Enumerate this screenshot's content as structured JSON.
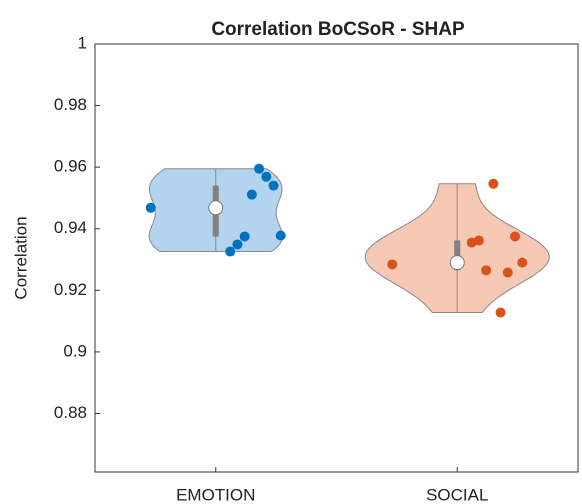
{
  "chart_data": {
    "type": "violin",
    "title": "Correlation BoCSoR - SHAP",
    "y_label": "Correlation",
    "categories": [
      "EMOTION",
      "SOCIAL"
    ],
    "series": [
      {
        "name": "EMOTION",
        "color": "#0072bd",
        "fill": "#b3d3ee",
        "values": [
          0.9468,
          0.9378,
          0.954,
          0.9569,
          0.9595,
          0.9511,
          0.9375,
          0.9349,
          0.9326
        ]
      },
      {
        "name": "SOCIAL",
        "color": "#d95319",
        "fill": "#f7c9b5",
        "values": [
          0.9284,
          0.929,
          0.9375,
          0.9258,
          0.9128,
          0.9546,
          0.9265,
          0.9362,
          0.9355
        ]
      }
    ],
    "ylim": [
      0.861,
      1
    ],
    "yticks": [
      0.88,
      0.9,
      0.92,
      0.94,
      0.96,
      0.98,
      1
    ]
  }
}
